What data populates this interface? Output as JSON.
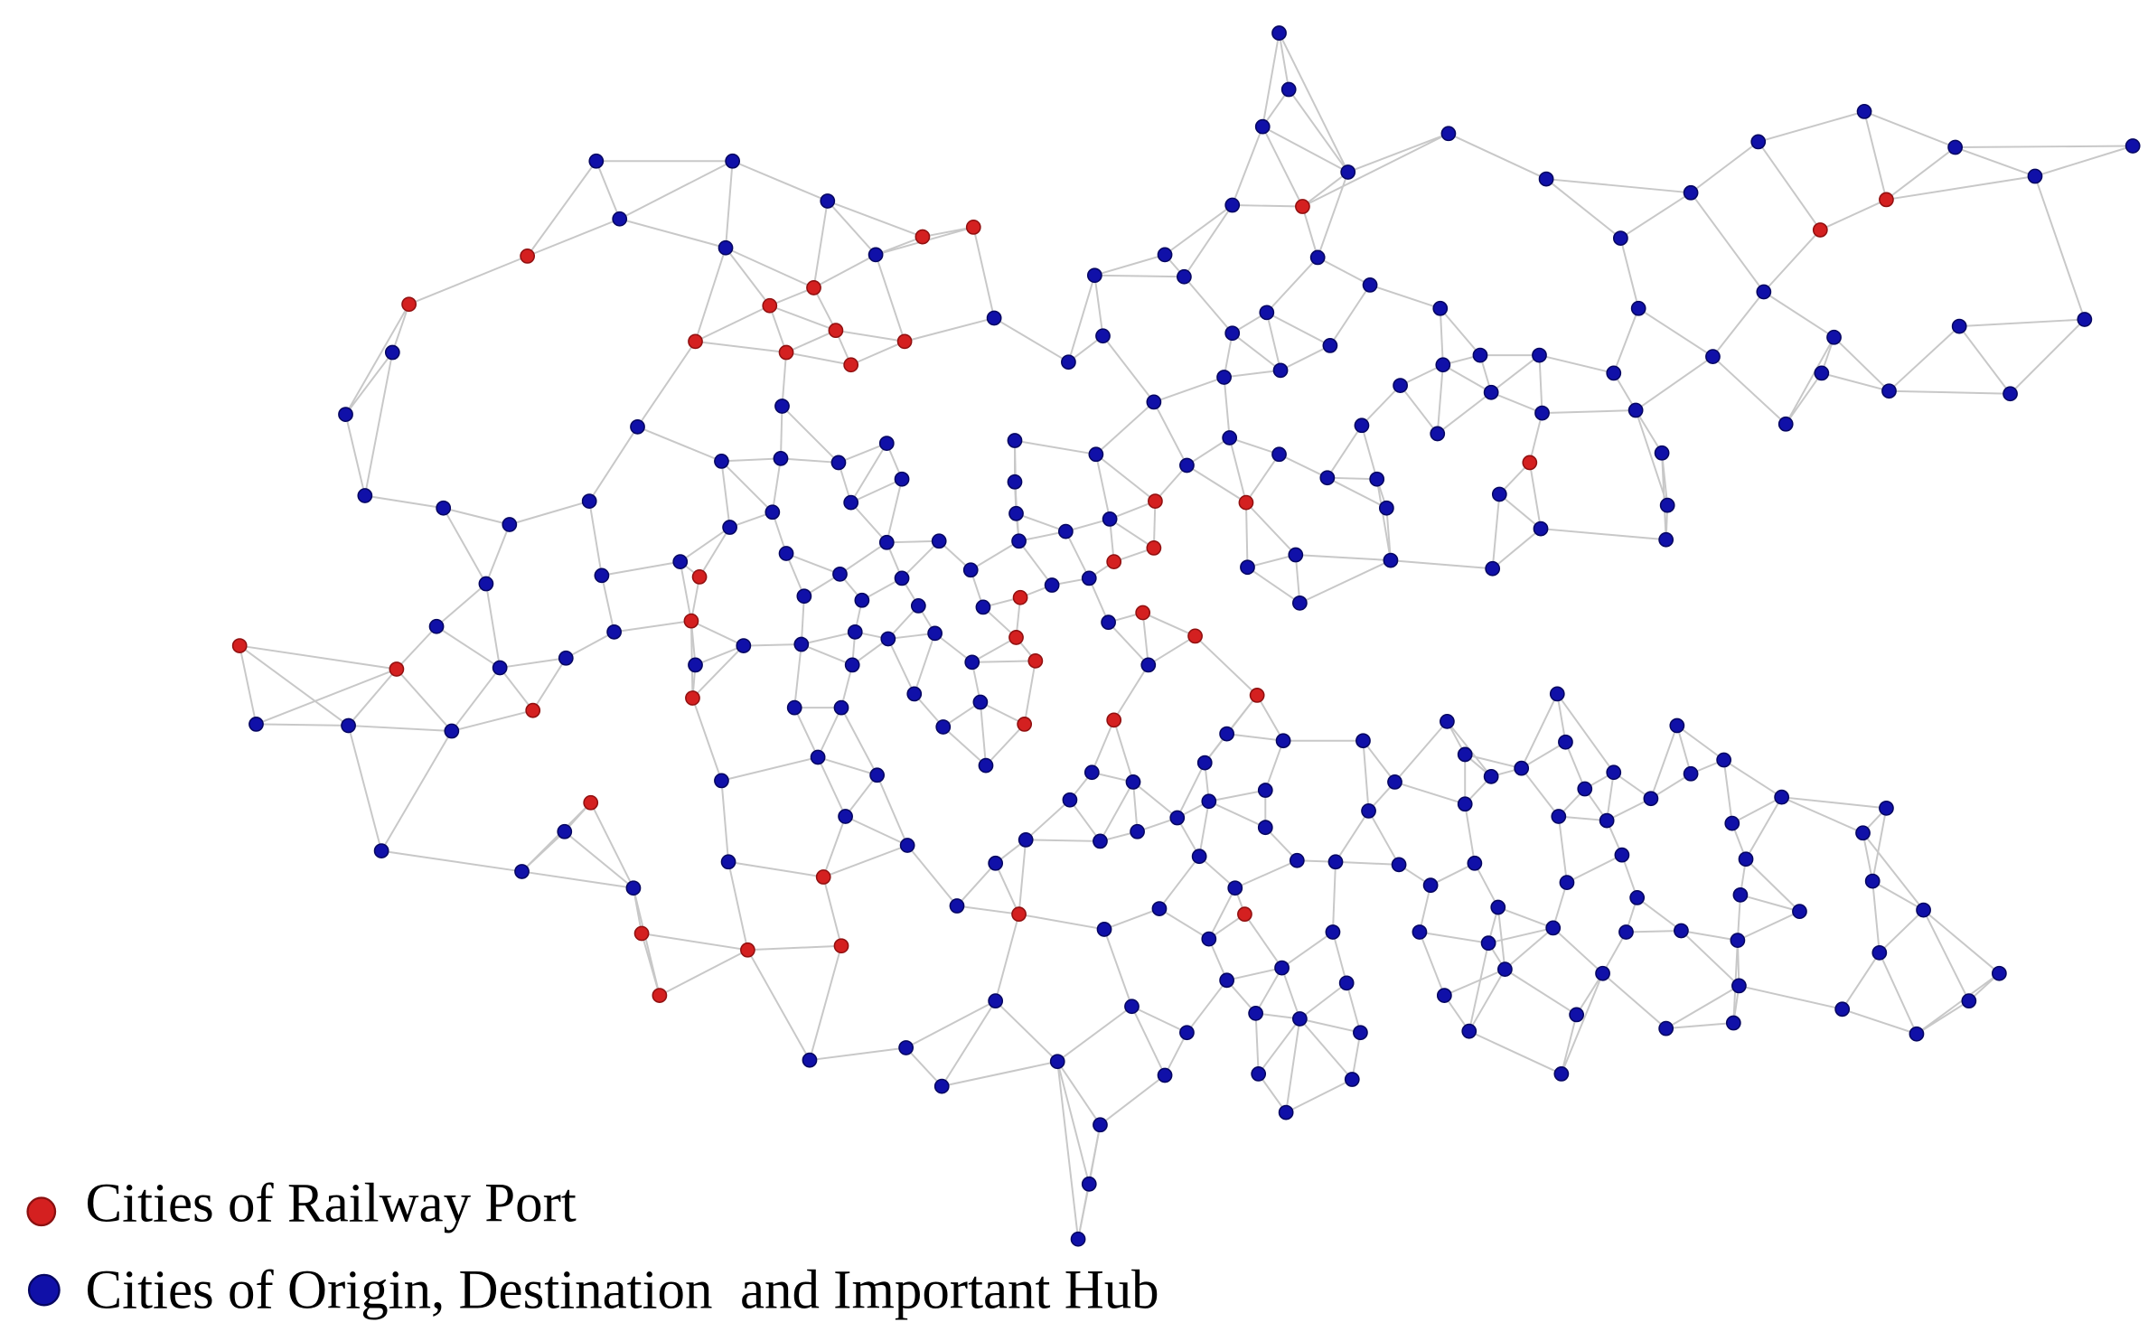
{
  "legend": {
    "items": [
      {
        "label": "Cities of Railway Port"
      },
      {
        "label": "Cities of Origin, Destination  and Important Hub"
      }
    ]
  }
}
